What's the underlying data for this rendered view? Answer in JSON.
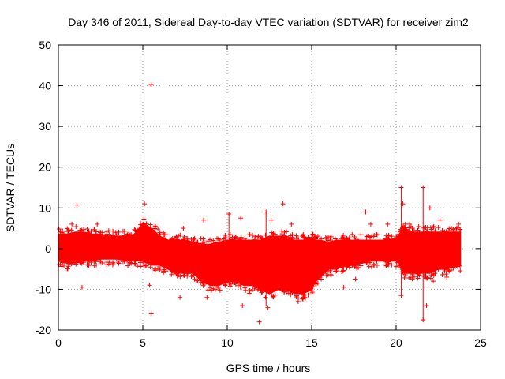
{
  "chart_data": {
    "type": "scatter",
    "title": "Day 346 of 2011, Sidereal Day-to-day VTEC variation (SDTVAR) for receiver zim2",
    "xlabel": "GPS time / hours",
    "ylabel": "SDTVAR / TECUs",
    "xlim": [
      0,
      25
    ],
    "ylim": [
      -20,
      50
    ],
    "xticks": [
      0,
      5,
      10,
      15,
      20,
      25
    ],
    "yticks": [
      -20,
      -10,
      0,
      10,
      20,
      30,
      40,
      50
    ],
    "xtick_labels": [
      "0",
      "5",
      "10",
      "15",
      "20",
      "25"
    ],
    "ytick_labels": [
      "-20",
      "-10",
      "0",
      "10",
      "20",
      "30",
      "40",
      "50"
    ],
    "grid": true,
    "marker": "+",
    "color": "#ff0000",
    "series": [
      {
        "name": "SDTVAR",
        "band_hours": [
          0,
          0.5,
          1,
          1.5,
          2,
          2.5,
          3,
          3.5,
          4,
          4.5,
          5,
          5.5,
          6,
          6.5,
          7,
          7.5,
          8,
          8.5,
          9,
          9.5,
          10,
          10.5,
          11,
          11.5,
          12,
          12.5,
          13,
          13.5,
          14,
          14.5,
          15,
          15.2,
          15.5,
          16,
          16.5,
          17,
          17.5,
          18,
          18.5,
          19,
          19.5,
          20,
          20.3,
          20.5,
          21,
          21.5,
          22,
          22.5,
          23,
          23.5,
          23.8
        ],
        "band_low": [
          -3,
          -3.5,
          -3.5,
          -3,
          -3,
          -2.5,
          -2.5,
          -2.5,
          -3,
          -3,
          -3,
          -4,
          -4,
          -5,
          -6,
          -6,
          -6,
          -8,
          -9,
          -9,
          -8,
          -8,
          -9,
          -9,
          -10,
          -11,
          -10,
          -10,
          -11,
          -11,
          -10,
          -8,
          -7,
          -5,
          -5,
          -4,
          -4,
          -3.5,
          -3,
          -3,
          -3,
          -3,
          -4,
          -6,
          -6,
          -6,
          -6,
          -5,
          -5,
          -4,
          -4
        ],
        "band_high": [
          3.5,
          3.5,
          4,
          4,
          3.5,
          3.5,
          3,
          3,
          3,
          3.5,
          6,
          5,
          3,
          2,
          2,
          2,
          1.5,
          1,
          1,
          1.5,
          2,
          2,
          2,
          2,
          2,
          3,
          3,
          3,
          2,
          2,
          2.5,
          2,
          2,
          1.5,
          2,
          2,
          2,
          2,
          2,
          2,
          2,
          2.5,
          4,
          5,
          4,
          4,
          4,
          4,
          4,
          4,
          4
        ],
        "outliers": [
          {
            "x": 5.5,
            "y": 40.3
          },
          {
            "x": 5.5,
            "y": -16
          },
          {
            "x": 5.1,
            "y": 11
          },
          {
            "x": 5.4,
            "y": -9
          },
          {
            "x": 1.1,
            "y": 10.7
          },
          {
            "x": 1.4,
            "y": -9.5
          },
          {
            "x": 0.8,
            "y": 6
          },
          {
            "x": 2.3,
            "y": 6
          },
          {
            "x": 7.2,
            "y": -12
          },
          {
            "x": 7.4,
            "y": 5
          },
          {
            "x": 8.6,
            "y": 7
          },
          {
            "x": 8.8,
            "y": -12
          },
          {
            "x": 10.1,
            "y": 8.5
          },
          {
            "x": 10.8,
            "y": 7.5
          },
          {
            "x": 10.9,
            "y": -14
          },
          {
            "x": 11.3,
            "y": -11
          },
          {
            "x": 11.9,
            "y": -18
          },
          {
            "x": 12.3,
            "y": 9
          },
          {
            "x": 12.6,
            "y": 7
          },
          {
            "x": 12.4,
            "y": -14.5
          },
          {
            "x": 13.3,
            "y": 11
          },
          {
            "x": 13.8,
            "y": 6
          },
          {
            "x": 14.2,
            "y": -13
          },
          {
            "x": 14.6,
            "y": -12
          },
          {
            "x": 16.9,
            "y": -9.5
          },
          {
            "x": 17.6,
            "y": -7.5
          },
          {
            "x": 18.2,
            "y": 9
          },
          {
            "x": 18.5,
            "y": 6
          },
          {
            "x": 19.5,
            "y": 6
          },
          {
            "x": 20.3,
            "y": 15
          },
          {
            "x": 20.4,
            "y": 11
          },
          {
            "x": 20.3,
            "y": -11.5
          },
          {
            "x": 20.8,
            "y": 6
          },
          {
            "x": 21.6,
            "y": 15
          },
          {
            "x": 21.6,
            "y": -17.5
          },
          {
            "x": 21.8,
            "y": -14
          },
          {
            "x": 22.0,
            "y": 10
          },
          {
            "x": 22.2,
            "y": -8
          },
          {
            "x": 22.6,
            "y": 7
          },
          {
            "x": 23.0,
            "y": -7
          },
          {
            "x": 23.7,
            "y": 6
          },
          {
            "x": 3.4,
            "y": 4
          }
        ]
      }
    ]
  }
}
